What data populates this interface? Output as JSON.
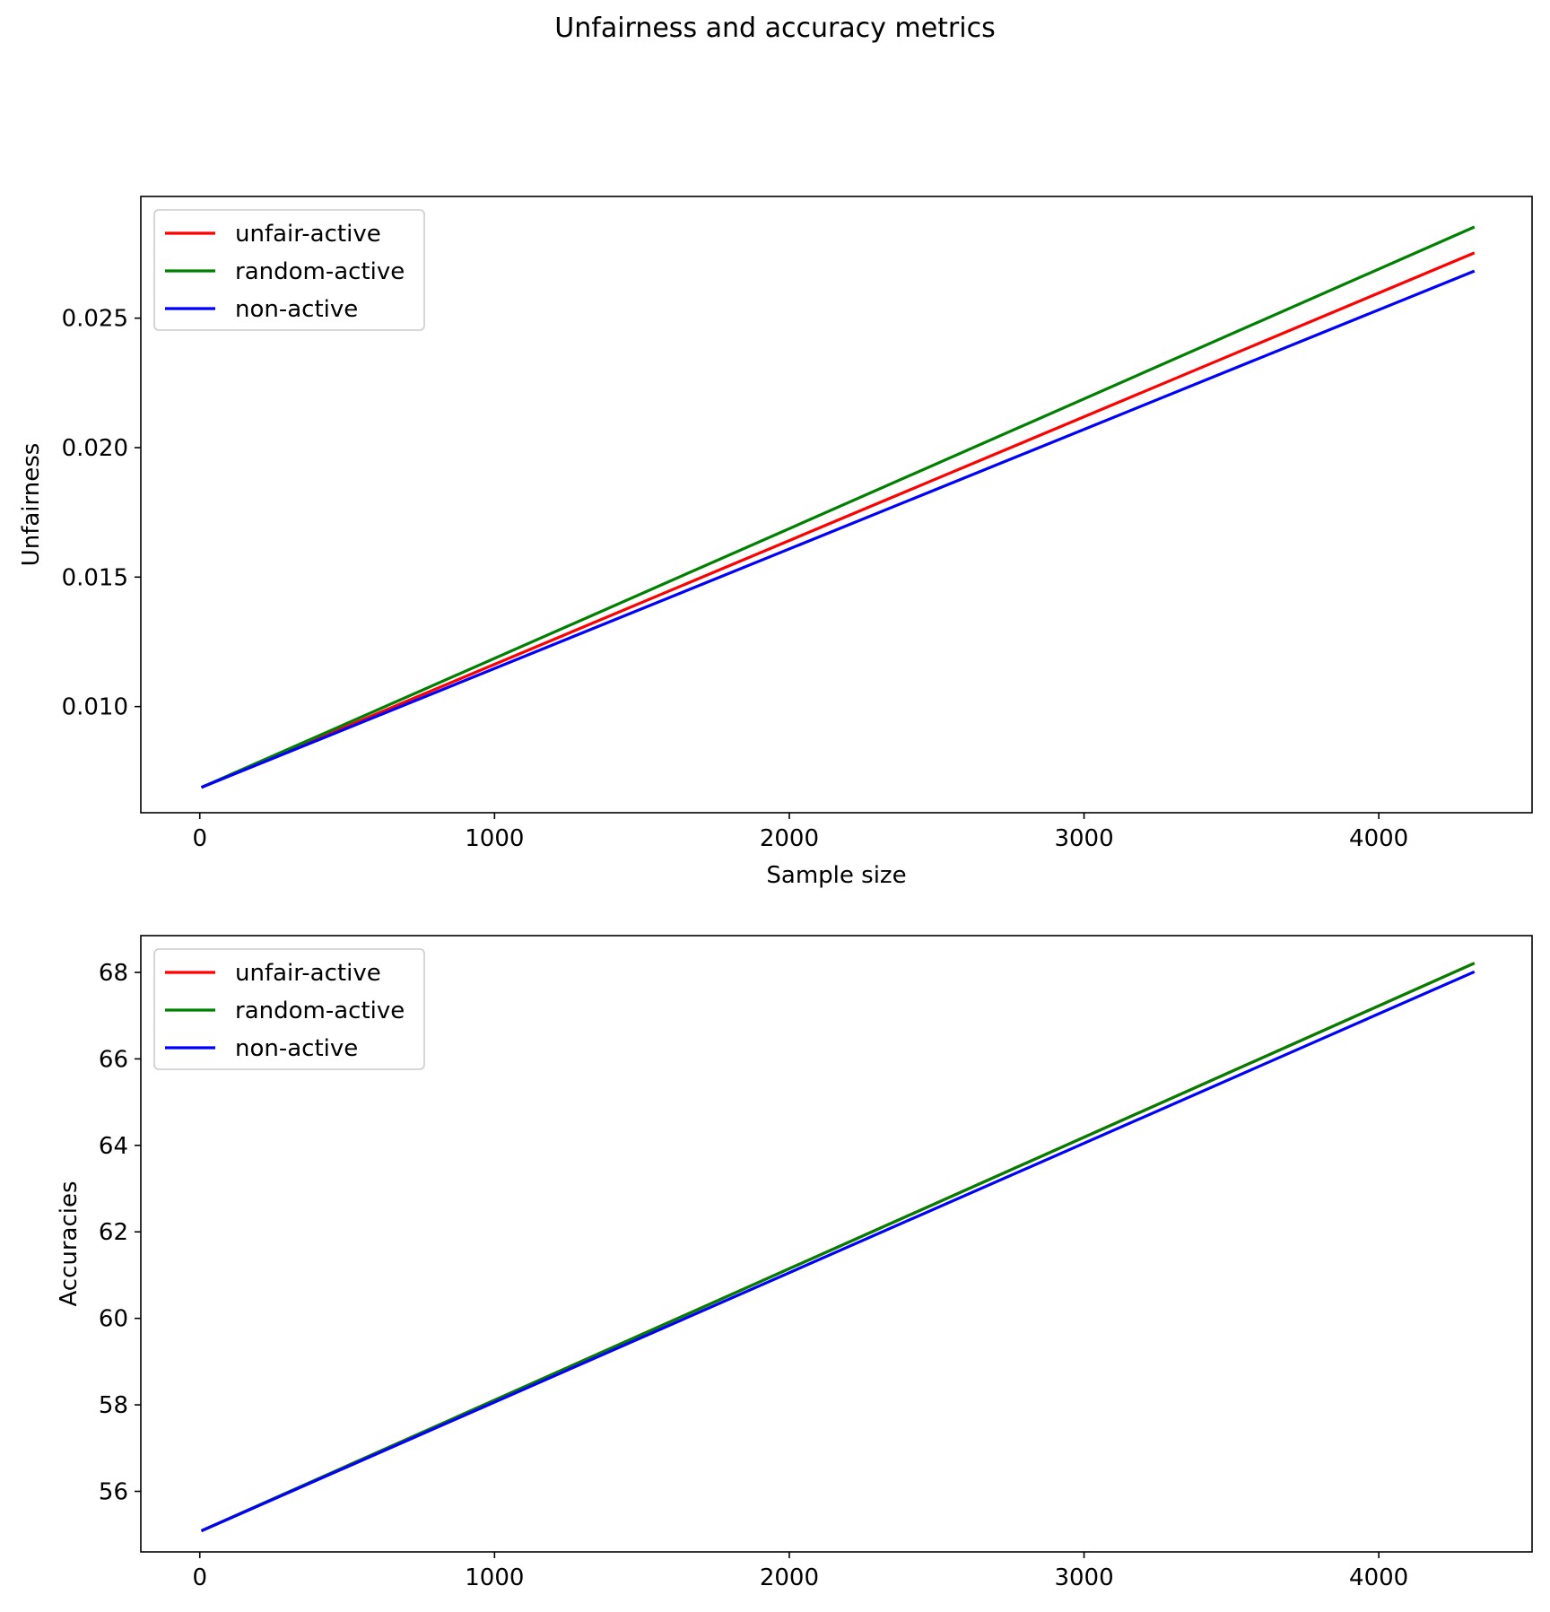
{
  "suptitle": "Unfairness and accuracy metrics",
  "chart_data": [
    {
      "type": "line",
      "title": "",
      "xlabel": "Sample size",
      "ylabel": "Unfairness",
      "xlim": [
        -200,
        4520
      ],
      "ylim": [
        0.0059,
        0.0297
      ],
      "xticks": [
        0,
        1000,
        2000,
        3000,
        4000
      ],
      "xtick_labels": [
        "0",
        "1000",
        "2000",
        "3000",
        "4000"
      ],
      "yticks": [
        0.01,
        0.015,
        0.02,
        0.025
      ],
      "ytick_labels": [
        "0.010",
        "0.015",
        "0.020",
        "0.025"
      ],
      "grid": false,
      "legend": "upper left",
      "x": [
        10,
        4320
      ],
      "series": [
        {
          "name": "unfair-active",
          "color": "#ff0000",
          "values": [
            0.0069,
            0.0275
          ]
        },
        {
          "name": "random-active",
          "color": "#008000",
          "values": [
            0.0069,
            0.0285
          ]
        },
        {
          "name": "non-active",
          "color": "#0000ff",
          "values": [
            0.0069,
            0.0268
          ]
        }
      ]
    },
    {
      "type": "line",
      "title": "",
      "xlabel": "",
      "ylabel": "Accuracies",
      "xlim": [
        -200,
        4520
      ],
      "ylim": [
        54.6,
        68.85
      ],
      "xticks": [
        0,
        1000,
        2000,
        3000,
        4000
      ],
      "xtick_labels": [
        "0",
        "1000",
        "2000",
        "3000",
        "4000"
      ],
      "yticks": [
        56,
        58,
        60,
        62,
        64,
        66,
        68
      ],
      "ytick_labels": [
        "56",
        "58",
        "60",
        "62",
        "64",
        "66",
        "68"
      ],
      "grid": false,
      "legend": "upper left",
      "x": [
        10,
        4320
      ],
      "series": [
        {
          "name": "unfair-active",
          "color": "#ff0000",
          "values": [
            55.1,
            68.2
          ]
        },
        {
          "name": "random-active",
          "color": "#008000",
          "values": [
            55.1,
            68.2
          ]
        },
        {
          "name": "non-active",
          "color": "#0000ff",
          "values": [
            55.1,
            68.0
          ]
        }
      ]
    }
  ]
}
